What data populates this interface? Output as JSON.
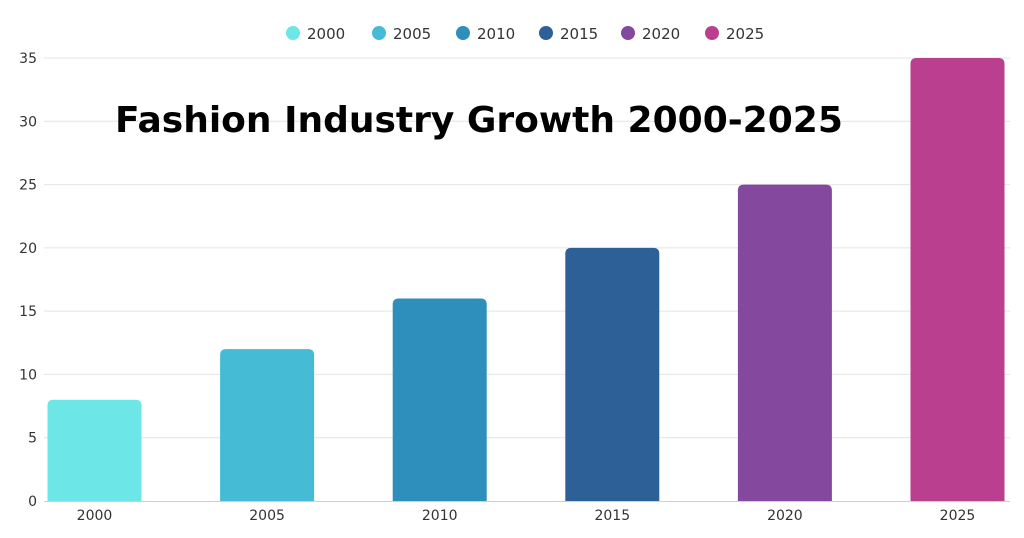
{
  "chart_data": {
    "type": "bar",
    "title": "Fashion Industry Growth 2000-2025",
    "xlabel": "",
    "ylabel": "",
    "categories": [
      "2000",
      "2005",
      "2010",
      "2015",
      "2020",
      "2025"
    ],
    "values": [
      8,
      12,
      16,
      20,
      25,
      35
    ],
    "colors": [
      "#6de6e8",
      "#45bbd6",
      "#2e8fbd",
      "#2e6098",
      "#84489e",
      "#bb3f8f"
    ],
    "legend": [
      "2000",
      "2005",
      "2010",
      "2015",
      "2020",
      "2025"
    ],
    "legend_position": "top-center",
    "ylim": [
      0,
      35
    ],
    "yticks": [
      0,
      5,
      10,
      15,
      20,
      25,
      30,
      35
    ],
    "grid": true
  }
}
